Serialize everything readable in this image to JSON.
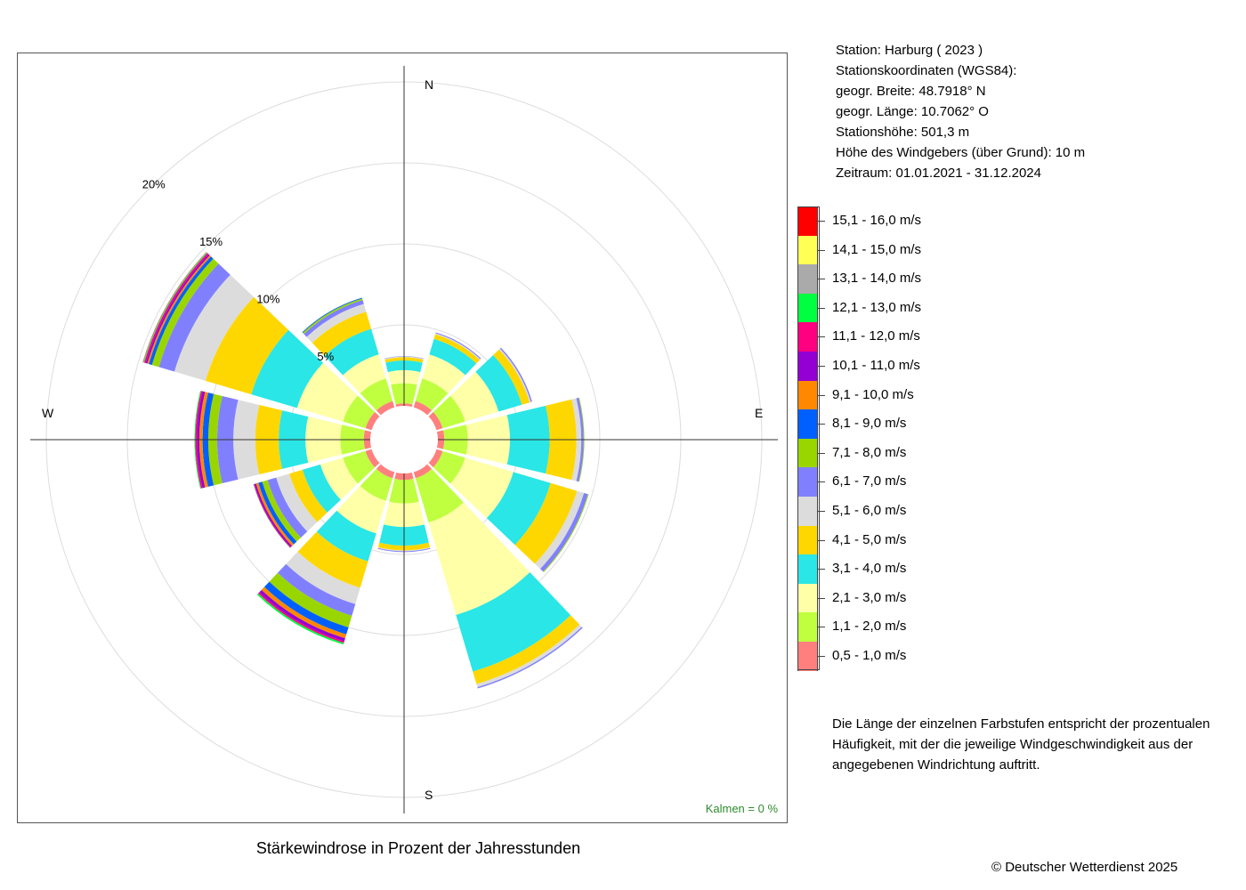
{
  "info": {
    "lines": [
      "Station:  Harburg  ( 2023 )",
      "Stationskoordinaten (WGS84):",
      "geogr. Breite: 48.7918° N",
      "geogr. Länge: 10.7062° O",
      "Stationshöhe: 501,3 m",
      "Höhe des Windgebers (über Grund): 10 m",
      "Zeitraum: 01.01.2021 - 31.12.2024"
    ]
  },
  "note": "Die Länge der einzelnen Farbstufen entspricht der prozentualen Häufigkeit, mit der die jeweilige Windgeschwindigkeit aus der angegebenen Windrichtung auftritt.",
  "title": "Stärkewindrose in Prozent der Jahresstunden",
  "copyright": "© Deutscher Wetterdienst  2025",
  "calm": "Kalmen  =  0 %",
  "compass": {
    "n": "N",
    "e": "E",
    "s": "S",
    "w": "W"
  },
  "chart_data": {
    "type": "polar-stacked-bar",
    "title": "Stärkewindrose in Prozent der Jahresstunden",
    "unit": "%",
    "ring_labels": [
      "5%",
      "10%",
      "15%",
      "20%"
    ],
    "rings": [
      5,
      10,
      15,
      20
    ],
    "calm_percent": 0,
    "speed_classes": [
      {
        "label": "0,5 - 1,0 m/s",
        "color": "#ff7f7f"
      },
      {
        "label": "1,1 - 2,0 m/s",
        "color": "#bfff3f"
      },
      {
        "label": "2,1 - 3,0 m/s",
        "color": "#ffffa8"
      },
      {
        "label": "3,1 - 4,0 m/s",
        "color": "#2ae6e6"
      },
      {
        "label": "4,1 - 5,0 m/s",
        "color": "#ffd700"
      },
      {
        "label": "5,1 - 6,0 m/s",
        "color": "#dcdcdc"
      },
      {
        "label": "6,1 - 7,0 m/s",
        "color": "#8080ff"
      },
      {
        "label": "7,1 - 8,0 m/s",
        "color": "#99d600"
      },
      {
        "label": "8,1 - 9,0 m/s",
        "color": "#0060ff"
      },
      {
        "label": "9,1 - 10,0 m/s",
        "color": "#ff8800"
      },
      {
        "label": "10,1 - 11,0 m/s",
        "color": "#9400d3"
      },
      {
        "label": "11,1 - 12,0 m/s",
        "color": "#ff0080"
      },
      {
        "label": "12,1 - 13,0 m/s",
        "color": "#00ff40"
      },
      {
        "label": "13,1 - 14,0 m/s",
        "color": "#aaaaaa"
      },
      {
        "label": "14,1 - 15,0 m/s",
        "color": "#ffff55"
      },
      {
        "label": "15,1 - 16,0 m/s",
        "color": "#ff0000"
      }
    ],
    "sectors": [
      {
        "direction_deg": 0,
        "values": [
          0.15,
          1.25,
          0.8,
          0.6,
          0.2,
          0.05,
          0.02,
          0,
          0,
          0,
          0,
          0,
          0,
          0,
          0,
          0
        ]
      },
      {
        "direction_deg": 30,
        "values": [
          0.4,
          1.45,
          1.55,
          1.0,
          0.3,
          0.06,
          0.06,
          0,
          0,
          0,
          0,
          0,
          0,
          0,
          0,
          0
        ]
      },
      {
        "direction_deg": 60,
        "values": [
          0.4,
          1.45,
          2.15,
          1.5,
          0.5,
          0.08,
          0.08,
          0,
          0,
          0,
          0,
          0,
          0,
          0,
          0,
          0
        ]
      },
      {
        "direction_deg": 90,
        "values": [
          0.4,
          1.45,
          2.6,
          2.45,
          1.65,
          0.3,
          0.15,
          0.04,
          0,
          0,
          0,
          0,
          0,
          0,
          0,
          0
        ]
      },
      {
        "direction_deg": 120,
        "values": [
          0.4,
          1.45,
          3.1,
          2.4,
          1.7,
          0.45,
          0.25,
          0.05,
          0,
          0,
          0,
          0,
          0,
          0,
          0,
          0
        ]
      },
      {
        "direction_deg": 150,
        "values": [
          0.4,
          2.85,
          5.95,
          3.65,
          0.8,
          0.2,
          0.08,
          0,
          0,
          0,
          0,
          0,
          0,
          0,
          0,
          0
        ]
      },
      {
        "direction_deg": 180,
        "values": [
          0.4,
          1.45,
          1.45,
          1.15,
          0.3,
          0.05,
          0.05,
          0,
          0,
          0,
          0,
          0,
          0,
          0,
          0,
          0
        ]
      },
      {
        "direction_deg": 210,
        "values": [
          0.4,
          1.45,
          2.1,
          1.8,
          1.7,
          1.05,
          0.75,
          0.75,
          0.45,
          0.25,
          0.2,
          0.1,
          0.1,
          0,
          0,
          0
        ]
      },
      {
        "direction_deg": 240,
        "values": [
          0.4,
          1.45,
          1.45,
          1.15,
          0.85,
          0.85,
          0.55,
          0.35,
          0.25,
          0.15,
          0.1,
          0.05,
          0.02,
          0,
          0,
          0
        ]
      },
      {
        "direction_deg": 270,
        "values": [
          0.4,
          1.45,
          2.15,
          1.65,
          1.45,
          1.35,
          1.0,
          0.55,
          0.35,
          0.2,
          0.15,
          0.1,
          0.05,
          0,
          0,
          0
        ]
      },
      {
        "direction_deg": 300,
        "values": [
          0.4,
          1.45,
          2.95,
          2.95,
          2.95,
          2.0,
          1.0,
          0.45,
          0.2,
          0.1,
          0.1,
          0.1,
          0.05,
          0.02,
          0,
          0.02
        ]
      },
      {
        "direction_deg": 330,
        "values": [
          0.4,
          1.45,
          1.55,
          1.65,
          1.1,
          0.5,
          0.25,
          0.1,
          0.05,
          0,
          0,
          0,
          0,
          0,
          0,
          0
        ]
      }
    ]
  }
}
